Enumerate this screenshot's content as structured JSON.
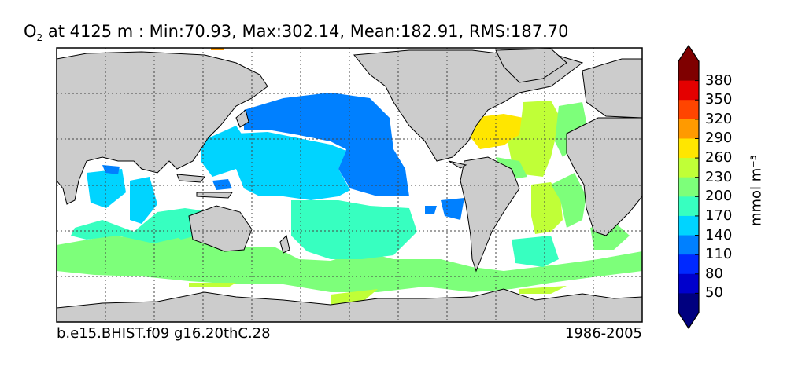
{
  "title": {
    "species": "O",
    "species_sub": "2",
    "depth_text": "at 4125 m : Min:70.93, Max:302.14, Mean:182.91, RMS:187.70"
  },
  "footer": {
    "run_id": "b.e15.BHIST.f09 g16.20thC.28",
    "period": "1986-2005"
  },
  "colorbar": {
    "unit_label": "mmol m⁻³",
    "ticks": [
      "380",
      "350",
      "320",
      "290",
      "260",
      "230",
      "200",
      "170",
      "140",
      "110",
      "80",
      "50"
    ],
    "colors": [
      "#7f0000",
      "#e40000",
      "#ff4500",
      "#ff9a00",
      "#ffe600",
      "#c0ff37",
      "#7dff7a",
      "#37ffc0",
      "#00d4ff",
      "#0080ff",
      "#0029ff",
      "#0000cc",
      "#00007f"
    ],
    "extend": "both"
  },
  "map": {
    "land_color": "#cccccc",
    "ocean_nodata_color": "#ffffff",
    "grid": true
  }
}
